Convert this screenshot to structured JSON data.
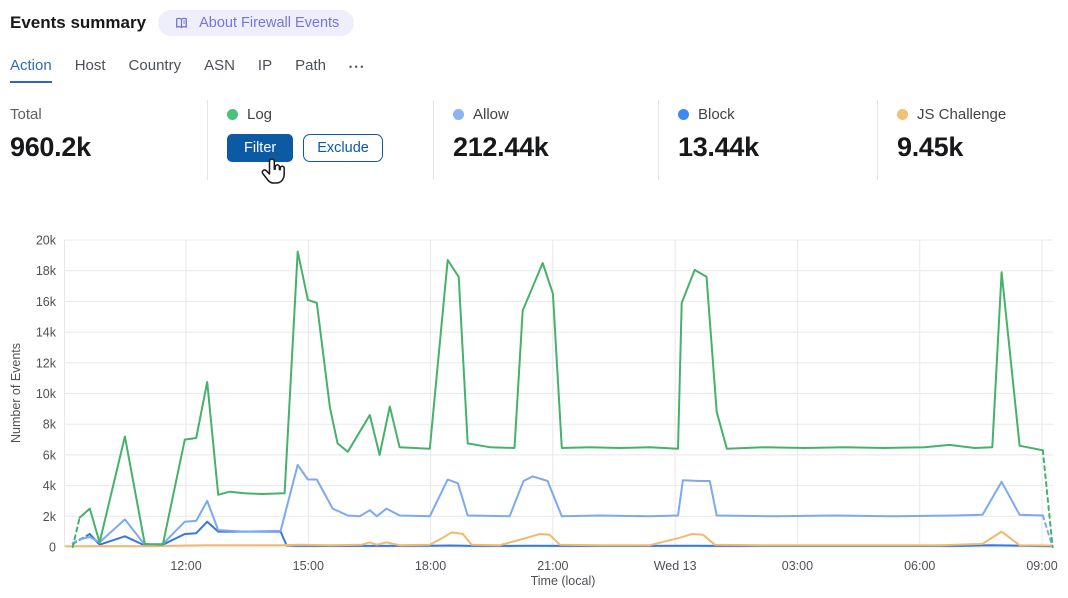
{
  "header": {
    "title": "Events summary",
    "about_label": "About Firewall Events"
  },
  "icons": {
    "about_book": "open-book",
    "tabs_more": "ellipsis",
    "cursor": "hand-pointer"
  },
  "tabs": {
    "items": [
      {
        "label": "Action",
        "active": true
      },
      {
        "label": "Host",
        "active": false
      },
      {
        "label": "Country",
        "active": false
      },
      {
        "label": "ASN",
        "active": false
      },
      {
        "label": "IP",
        "active": false
      },
      {
        "label": "Path",
        "active": false
      }
    ],
    "more_label": "•••"
  },
  "stats": {
    "total": {
      "label": "Total",
      "value": "960.2k"
    },
    "log": {
      "label": "Log",
      "filter_label": "Filter",
      "exclude_label": "Exclude"
    },
    "allow": {
      "label": "Allow",
      "value": "212.44k"
    },
    "block": {
      "label": "Block",
      "value": "13.44k"
    },
    "js_challenge": {
      "label": "JS Challenge",
      "value": "9.45k"
    }
  },
  "colors": {
    "accent_blue": "#0c59a4",
    "tab_active": "#2e6cb3",
    "tab_underline": "#2b66c4",
    "badge_bg": "#efeefb",
    "badge_text": "#7476dd",
    "grid": "#e8e8ea",
    "log": "#45b269",
    "log_dot": "#4bc17e",
    "allow": "#7ca9ef",
    "allow_dot": "#8db4f2",
    "block": "#3778dd",
    "block_dot": "#3f87f5",
    "js_challenge": "#f0ba6e",
    "js_challenge_dot": "#f4c077"
  },
  "chart_data": {
    "type": "line",
    "xlabel": "Time (local)",
    "ylabel": "Number of Events",
    "x_unit": "hour of day, local (9 = 09:00; values >= 24 are next day 'Wed 13')",
    "x_range": [
      9.0,
      33.27
    ],
    "values_unit": "thousands of events",
    "ylim_k": [
      0,
      20
    ],
    "grid": true,
    "legend_position": "top-stats-row",
    "x_ticks": [
      {
        "t": 12,
        "label": "12:00"
      },
      {
        "t": 15,
        "label": "15:00"
      },
      {
        "t": 18,
        "label": "18:00"
      },
      {
        "t": 21,
        "label": "21:00"
      },
      {
        "t": 24,
        "label": "Wed 13"
      },
      {
        "t": 27,
        "label": "03:00"
      },
      {
        "t": 30,
        "label": "06:00"
      },
      {
        "t": 33,
        "label": "09:00"
      }
    ],
    "y_ticks": [
      {
        "v": 0,
        "label": "0"
      },
      {
        "v": 2,
        "label": "2k"
      },
      {
        "v": 4,
        "label": "4k"
      },
      {
        "v": 6,
        "label": "6k"
      },
      {
        "v": 8,
        "label": "8k"
      },
      {
        "v": 10,
        "label": "10k"
      },
      {
        "v": 12,
        "label": "12k"
      },
      {
        "v": 14,
        "label": "14k"
      },
      {
        "v": 16,
        "label": "16k"
      },
      {
        "v": 18,
        "label": "18k"
      },
      {
        "v": 20,
        "label": "20k"
      }
    ],
    "series": [
      {
        "key": "block",
        "name": "Block",
        "color_key": "block",
        "dash_head": 2,
        "dash_tail": 0,
        "points": [
          [
            9.22,
            0.2
          ],
          [
            9.64,
            0.85
          ],
          [
            9.88,
            0.15
          ],
          [
            10.5,
            0.7
          ],
          [
            10.99,
            0.1
          ],
          [
            11.43,
            0.15
          ],
          [
            11.97,
            0.85
          ],
          [
            12.25,
            0.9
          ],
          [
            12.52,
            1.65
          ],
          [
            12.79,
            1.0
          ],
          [
            13.44,
            1.0
          ],
          [
            14.32,
            1.0
          ],
          [
            14.47,
            0.1
          ],
          [
            14.74,
            0.07
          ],
          [
            16.0,
            0.07
          ],
          [
            17.98,
            0.08
          ],
          [
            18.5,
            0.1
          ],
          [
            19.0,
            0.07
          ],
          [
            20.5,
            0.08
          ],
          [
            21.22,
            0.07
          ],
          [
            23.0,
            0.07
          ],
          [
            24.5,
            0.08
          ],
          [
            25.02,
            0.07
          ],
          [
            27.0,
            0.07
          ],
          [
            29.0,
            0.07
          ],
          [
            31.0,
            0.07
          ],
          [
            31.72,
            0.12
          ],
          [
            32.21,
            0.1
          ],
          [
            33.0,
            0.06
          ],
          [
            33.2,
            0.05
          ]
        ]
      },
      {
        "key": "js_challenge",
        "name": "JS Challenge",
        "color_key": "js_challenge",
        "dash_head": 0,
        "dash_tail": 0,
        "points": [
          [
            9.05,
            0.05
          ],
          [
            10.0,
            0.06
          ],
          [
            11.0,
            0.05
          ],
          [
            12.0,
            0.1
          ],
          [
            12.52,
            0.12
          ],
          [
            13.5,
            0.12
          ],
          [
            14.32,
            0.12
          ],
          [
            14.79,
            0.15
          ],
          [
            15.53,
            0.12
          ],
          [
            16.31,
            0.15
          ],
          [
            16.51,
            0.3
          ],
          [
            16.68,
            0.15
          ],
          [
            16.92,
            0.3
          ],
          [
            17.24,
            0.12
          ],
          [
            17.98,
            0.15
          ],
          [
            18.3,
            0.6
          ],
          [
            18.52,
            0.95
          ],
          [
            18.79,
            0.85
          ],
          [
            19.01,
            0.15
          ],
          [
            19.7,
            0.12
          ],
          [
            20.36,
            0.6
          ],
          [
            20.68,
            0.85
          ],
          [
            20.92,
            0.8
          ],
          [
            21.17,
            0.15
          ],
          [
            22.15,
            0.12
          ],
          [
            23.38,
            0.12
          ],
          [
            24.11,
            0.6
          ],
          [
            24.41,
            0.85
          ],
          [
            24.68,
            0.8
          ],
          [
            24.97,
            0.15
          ],
          [
            26.08,
            0.12
          ],
          [
            27.55,
            0.12
          ],
          [
            29.02,
            0.12
          ],
          [
            30.49,
            0.12
          ],
          [
            31.54,
            0.2
          ],
          [
            32.01,
            1.0
          ],
          [
            32.45,
            0.12
          ],
          [
            33.26,
            0.1
          ]
        ]
      },
      {
        "key": "allow",
        "name": "Allow",
        "color_key": "allow",
        "dash_head": 2,
        "dash_tail": 2,
        "points": [
          [
            9.22,
            0.25
          ],
          [
            9.39,
            0.5
          ],
          [
            9.64,
            0.65
          ],
          [
            9.88,
            0.3
          ],
          [
            10.5,
            1.8
          ],
          [
            10.99,
            0.15
          ],
          [
            11.43,
            0.2
          ],
          [
            11.97,
            1.65
          ],
          [
            12.25,
            1.7
          ],
          [
            12.52,
            3.0
          ],
          [
            12.79,
            1.1
          ],
          [
            13.44,
            1.0
          ],
          [
            14.32,
            1.05
          ],
          [
            14.74,
            5.35
          ],
          [
            14.99,
            4.4
          ],
          [
            15.21,
            4.4
          ],
          [
            15.6,
            2.5
          ],
          [
            15.97,
            2.05
          ],
          [
            16.26,
            2.0
          ],
          [
            16.51,
            2.4
          ],
          [
            16.68,
            2.0
          ],
          [
            16.92,
            2.5
          ],
          [
            17.24,
            2.05
          ],
          [
            17.98,
            2.0
          ],
          [
            18.42,
            4.4
          ],
          [
            18.67,
            4.15
          ],
          [
            18.91,
            2.05
          ],
          [
            19.94,
            2.0
          ],
          [
            20.28,
            4.3
          ],
          [
            20.51,
            4.6
          ],
          [
            20.87,
            4.3
          ],
          [
            21.22,
            2.0
          ],
          [
            22.15,
            2.05
          ],
          [
            23.38,
            2.0
          ],
          [
            24.07,
            2.05
          ],
          [
            24.19,
            4.35
          ],
          [
            24.6,
            4.3
          ],
          [
            24.85,
            4.3
          ],
          [
            25.02,
            2.05
          ],
          [
            26.44,
            2.0
          ],
          [
            27.92,
            2.05
          ],
          [
            29.39,
            2.0
          ],
          [
            30.86,
            2.05
          ],
          [
            31.54,
            2.1
          ],
          [
            32.01,
            4.25
          ],
          [
            32.45,
            2.1
          ],
          [
            33.02,
            2.05
          ],
          [
            33.26,
            0
          ]
        ]
      },
      {
        "key": "log",
        "name": "Log",
        "color_key": "log",
        "dash_head": 2,
        "dash_tail": 2,
        "points": [
          [
            9.22,
            0
          ],
          [
            9.39,
            1.9
          ],
          [
            9.64,
            2.5
          ],
          [
            9.88,
            0.3
          ],
          [
            10.5,
            7.2
          ],
          [
            10.99,
            0.2
          ],
          [
            11.43,
            0.15
          ],
          [
            11.97,
            7.0
          ],
          [
            12.25,
            7.1
          ],
          [
            12.52,
            10.75
          ],
          [
            12.79,
            3.4
          ],
          [
            13.07,
            3.6
          ],
          [
            13.44,
            3.5
          ],
          [
            13.86,
            3.45
          ],
          [
            14.42,
            3.5
          ],
          [
            14.74,
            19.25
          ],
          [
            14.99,
            16.1
          ],
          [
            15.21,
            15.9
          ],
          [
            15.53,
            9.1
          ],
          [
            15.72,
            6.75
          ],
          [
            15.97,
            6.2
          ],
          [
            16.51,
            8.6
          ],
          [
            16.75,
            6.0
          ],
          [
            17.0,
            9.15
          ],
          [
            17.24,
            6.5
          ],
          [
            17.98,
            6.4
          ],
          [
            18.42,
            18.7
          ],
          [
            18.69,
            17.6
          ],
          [
            18.91,
            6.75
          ],
          [
            19.45,
            6.5
          ],
          [
            20.06,
            6.45
          ],
          [
            20.26,
            15.4
          ],
          [
            20.75,
            18.5
          ],
          [
            21.0,
            16.5
          ],
          [
            21.22,
            6.45
          ],
          [
            21.91,
            6.5
          ],
          [
            22.64,
            6.45
          ],
          [
            23.38,
            6.5
          ],
          [
            24.07,
            6.4
          ],
          [
            24.16,
            15.9
          ],
          [
            24.48,
            18.05
          ],
          [
            24.77,
            17.6
          ],
          [
            25.02,
            8.8
          ],
          [
            25.27,
            6.4
          ],
          [
            26.2,
            6.5
          ],
          [
            27.18,
            6.45
          ],
          [
            28.16,
            6.5
          ],
          [
            29.14,
            6.45
          ],
          [
            30.12,
            6.5
          ],
          [
            30.73,
            6.65
          ],
          [
            31.35,
            6.45
          ],
          [
            31.78,
            6.5
          ],
          [
            32.01,
            17.9
          ],
          [
            32.45,
            6.6
          ],
          [
            33.02,
            6.3
          ],
          [
            33.26,
            0
          ]
        ]
      }
    ]
  }
}
